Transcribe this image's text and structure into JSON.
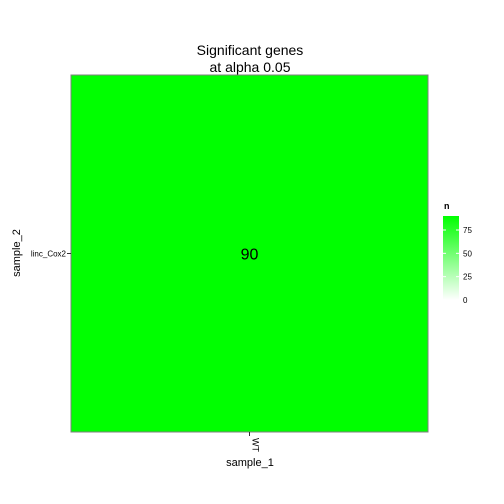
{
  "chart_data": {
    "type": "heatmap",
    "title_line1": "Significant genes",
    "title_line2": "at alpha 0.05",
    "xlabel": "sample_1",
    "ylabel": "sample_2",
    "x_categories": [
      "WT"
    ],
    "y_categories": [
      "linc_Cox2"
    ],
    "cells": [
      {
        "x": "WT",
        "y": "linc_Cox2",
        "value": 90,
        "label": "90"
      }
    ],
    "legend": {
      "title": "n",
      "ticks": [
        0,
        25,
        50,
        75
      ],
      "tick_labels": [
        "0",
        "25",
        "50",
        "75"
      ],
      "min": 0,
      "max": 90,
      "low_color": "#ffffff",
      "high_color": "#00ff00",
      "placement": "right"
    },
    "grid": false
  }
}
